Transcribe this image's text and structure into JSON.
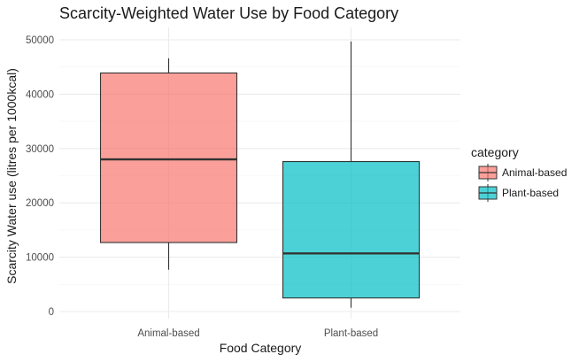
{
  "chart_data": {
    "type": "boxplot",
    "title": "Scarcity-Weighted Water Use by Food Category",
    "xlabel": "Food Category",
    "ylabel": "Scarcity Water use  (litres per 1000kcal)",
    "ylim": [
      0,
      50000
    ],
    "yticks": [
      0,
      10000,
      20000,
      30000,
      40000,
      50000
    ],
    "grid": true,
    "legend": {
      "title": "category",
      "position": "right",
      "entries": [
        "Animal-based",
        "Plant-based"
      ]
    },
    "categories": [
      "Animal-based",
      "Plant-based"
    ],
    "series": [
      {
        "name": "Animal-based",
        "color": "#F8766D",
        "whisker_low": 7700,
        "q1": 12700,
        "median": 28000,
        "q3": 43900,
        "whisker_high": 46600
      },
      {
        "name": "Plant-based",
        "color": "#00BFC4",
        "whisker_low": 700,
        "q1": 2500,
        "median": 10700,
        "q3": 27600,
        "whisker_high": 49700
      }
    ]
  }
}
